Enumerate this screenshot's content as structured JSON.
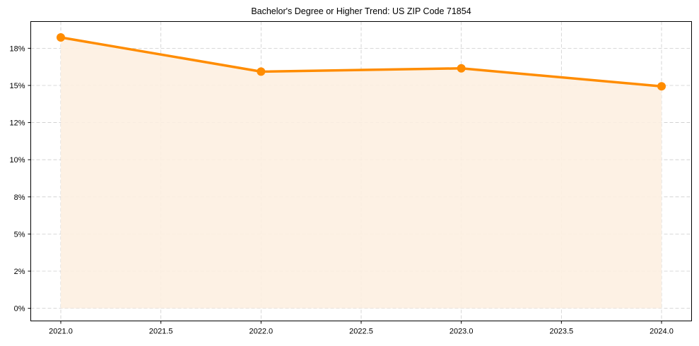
{
  "chart_data": {
    "type": "line",
    "title": "Bachelor's Degree or Higher Trend: US ZIP Code 71854",
    "xlabel": "",
    "ylabel": "",
    "x": [
      2021,
      2022,
      2023,
      2024
    ],
    "series": [
      {
        "name": "Bachelor's Degree or Higher",
        "values": [
          18.23,
          15.93,
          16.15,
          14.94
        ],
        "color": "#ff8c00",
        "fill": "#fdf0e1"
      }
    ],
    "xlim": [
      2020.85,
      2024.15
    ],
    "ylim": [
      -0.85,
      19.3
    ],
    "xticks": [
      2021.0,
      2021.5,
      2022.0,
      2022.5,
      2023.0,
      2023.5,
      2024.0
    ],
    "xtick_labels": [
      "2021.0",
      "2021.5",
      "2022.0",
      "2022.5",
      "2023.0",
      "2023.5",
      "2024.0"
    ],
    "yticks": [
      0,
      2.5,
      5,
      7.5,
      10,
      12.5,
      15,
      17.5
    ],
    "ytick_labels": [
      "0%",
      "2%",
      "5%",
      "8%",
      "10%",
      "12%",
      "15%",
      "18%"
    ],
    "grid": true,
    "grid_color": "#cccccc",
    "legend": "none"
  }
}
